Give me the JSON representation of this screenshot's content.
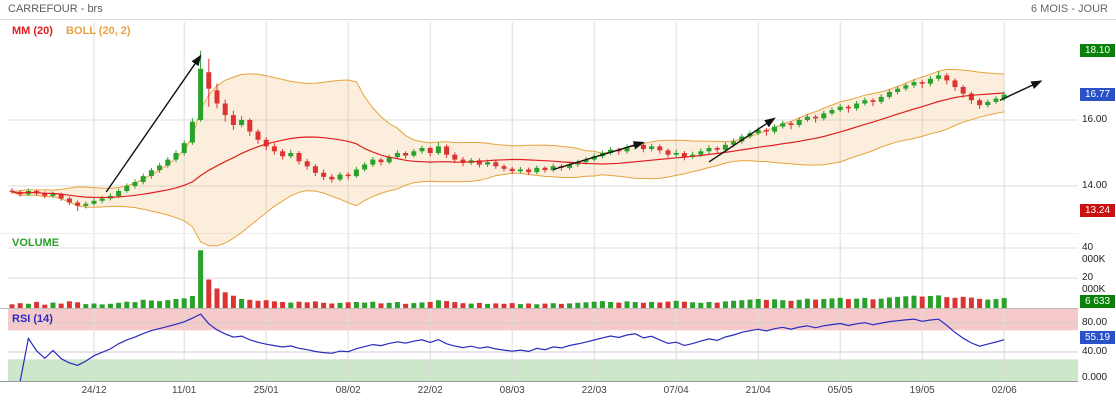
{
  "header": {
    "title": "CARREFOUR - brs",
    "timeframe": "6 MOIS - JOUR"
  },
  "legend": {
    "mm": "MM (20)",
    "boll": "BOLL (20, 2)"
  },
  "panels": {
    "volume_label": "VOLUME",
    "rsi_label": "RSI (14)"
  },
  "axis": {
    "price_high": "18.10",
    "price_last": "16.77",
    "price_grid_a": "16.00",
    "price_grid_b": "14.00",
    "price_low": "13.24",
    "vol_grid_a": "40 000K",
    "vol_grid_b": "20 000K",
    "vol_last": "6 633",
    "rsi_grid_a": "80.00",
    "rsi_last": "55.19",
    "rsi_grid_b": "40.00",
    "rsi_zero": "0.000"
  },
  "colors": {
    "up": "#2aa12a",
    "down": "#dd3333",
    "boll_line": "#e8a23e",
    "mm": "#e02020",
    "rsi": "#2a2ac0",
    "rsi_zone_high": "#f6caca",
    "rsi_zone_low": "#cde7cb",
    "grid": "#dddddd",
    "badge_green": "#0a820a",
    "badge_blue": "#2952c8",
    "badge_red": "#cc1111",
    "arrow": "#111111"
  },
  "chart_data": [
    {
      "type": "candlestick",
      "name": "CARREFOUR - brs daily candles",
      "timeframe": "6 MOIS - JOUR",
      "period_high": 18.1,
      "period_low": 13.24,
      "last_close": 16.77,
      "ylim": [
        13.0,
        18.6
      ],
      "grid_prices": [
        16,
        14
      ],
      "indicators": [
        {
          "name": "MM",
          "period": 20
        },
        {
          "name": "BOLL",
          "period": 20,
          "dev": 2
        }
      ],
      "x_ticks": [
        {
          "label": "24/12",
          "index": 10
        },
        {
          "label": "11/01",
          "index": 21
        },
        {
          "label": "25/01",
          "index": 31
        },
        {
          "label": "08/02",
          "index": 41
        },
        {
          "label": "22/02",
          "index": 51
        },
        {
          "label": "08/03",
          "index": 61
        },
        {
          "label": "22/03",
          "index": 71
        },
        {
          "label": "07/04",
          "index": 81
        },
        {
          "label": "21/04",
          "index": 91
        },
        {
          "label": "05/05",
          "index": 101
        },
        {
          "label": "19/05",
          "index": 111
        },
        {
          "label": "02/06",
          "index": 121
        }
      ],
      "arrows": [
        {
          "from": [
            11.5,
            13.82
          ],
          "to": [
            23,
            17.95
          ]
        },
        {
          "from": [
            66,
            14.5
          ],
          "to": [
            77,
            15.32
          ]
        },
        {
          "from": [
            85,
            14.73
          ],
          "to": [
            93,
            16.05
          ]
        },
        {
          "from": [
            120.5,
            16.6
          ],
          "to": [
            125.5,
            17.18
          ]
        }
      ],
      "columns": [
        "open",
        "high",
        "low",
        "close",
        "volume_k"
      ],
      "candles": [
        [
          13.86,
          13.94,
          13.76,
          13.82,
          2500
        ],
        [
          13.82,
          13.88,
          13.68,
          13.75,
          3200
        ],
        [
          13.75,
          13.92,
          13.7,
          13.85,
          2800
        ],
        [
          13.85,
          13.9,
          13.7,
          13.78,
          4100
        ],
        [
          13.78,
          13.84,
          13.62,
          13.7,
          2200
        ],
        [
          13.7,
          13.83,
          13.64,
          13.76,
          3600
        ],
        [
          13.76,
          13.8,
          13.55,
          13.62,
          2900
        ],
        [
          13.62,
          13.68,
          13.42,
          13.5,
          4500
        ],
        [
          13.5,
          13.56,
          13.24,
          13.4,
          3800
        ],
        [
          13.4,
          13.53,
          13.32,
          13.46,
          2600
        ],
        [
          13.46,
          13.62,
          13.4,
          13.55,
          3000
        ],
        [
          13.55,
          13.7,
          13.48,
          13.62,
          2400
        ],
        [
          13.62,
          13.78,
          13.56,
          13.7,
          2800
        ],
        [
          13.7,
          13.92,
          13.64,
          13.85,
          3500
        ],
        [
          13.85,
          14.08,
          13.8,
          14.0,
          4200
        ],
        [
          14.0,
          14.2,
          13.92,
          14.12,
          3900
        ],
        [
          14.12,
          14.38,
          14.05,
          14.3,
          5500
        ],
        [
          14.3,
          14.55,
          14.22,
          14.48,
          5000
        ],
        [
          14.48,
          14.7,
          14.4,
          14.62,
          4600
        ],
        [
          14.62,
          14.88,
          14.55,
          14.8,
          5200
        ],
        [
          14.8,
          15.08,
          14.72,
          15.0,
          6000
        ],
        [
          15.0,
          15.38,
          14.92,
          15.3,
          6500
        ],
        [
          15.32,
          16.05,
          15.25,
          15.95,
          8000
        ],
        [
          16.0,
          18.1,
          15.95,
          17.55,
          38500
        ],
        [
          17.45,
          17.85,
          16.4,
          16.95,
          19000
        ],
        [
          16.9,
          17.1,
          16.35,
          16.5,
          13000
        ],
        [
          16.5,
          16.62,
          15.95,
          16.15,
          10500
        ],
        [
          16.15,
          16.28,
          15.7,
          15.85,
          8200
        ],
        [
          15.85,
          16.12,
          15.78,
          16.0,
          6000
        ],
        [
          16.0,
          16.05,
          15.52,
          15.65,
          5500
        ],
        [
          15.65,
          15.72,
          15.28,
          15.4,
          4800
        ],
        [
          15.4,
          15.48,
          15.08,
          15.2,
          5200
        ],
        [
          15.2,
          15.3,
          14.95,
          15.05,
          4500
        ],
        [
          15.05,
          15.12,
          14.8,
          14.9,
          4000
        ],
        [
          14.9,
          15.1,
          14.84,
          15.0,
          3600
        ],
        [
          15.0,
          15.06,
          14.65,
          14.75,
          4200
        ],
        [
          14.75,
          14.82,
          14.5,
          14.6,
          3800
        ],
        [
          14.6,
          14.66,
          14.3,
          14.4,
          4400
        ],
        [
          14.4,
          14.5,
          14.18,
          14.28,
          3500
        ],
        [
          14.28,
          14.36,
          14.1,
          14.2,
          3000
        ],
        [
          14.2,
          14.42,
          14.14,
          14.35,
          3400
        ],
        [
          14.35,
          14.42,
          14.2,
          14.3,
          3800
        ],
        [
          14.3,
          14.58,
          14.25,
          14.5,
          4000
        ],
        [
          14.5,
          14.72,
          14.44,
          14.65,
          3600
        ],
        [
          14.65,
          14.88,
          14.58,
          14.8,
          4200
        ],
        [
          14.8,
          14.86,
          14.62,
          14.72,
          3100
        ],
        [
          14.72,
          14.95,
          14.66,
          14.88,
          3500
        ],
        [
          14.88,
          15.08,
          14.82,
          15.0,
          3900
        ],
        [
          15.0,
          15.05,
          14.82,
          14.92,
          2800
        ],
        [
          14.92,
          15.12,
          14.86,
          15.05,
          3300
        ],
        [
          15.05,
          15.22,
          14.98,
          15.15,
          3700
        ],
        [
          15.15,
          15.2,
          14.9,
          15.0,
          4100
        ],
        [
          15.0,
          15.32,
          14.94,
          15.2,
          5200
        ],
        [
          15.2,
          15.26,
          14.85,
          14.95,
          4600
        ],
        [
          14.95,
          15.02,
          14.7,
          14.8,
          3900
        ],
        [
          14.8,
          14.88,
          14.6,
          14.7,
          3200
        ],
        [
          14.7,
          14.85,
          14.64,
          14.78,
          2900
        ],
        [
          14.78,
          14.84,
          14.56,
          14.65,
          3400
        ],
        [
          14.65,
          14.8,
          14.58,
          14.72,
          2700
        ],
        [
          14.72,
          14.78,
          14.52,
          14.6,
          3100
        ],
        [
          14.6,
          14.66,
          14.44,
          14.52,
          2800
        ],
        [
          14.52,
          14.58,
          14.36,
          14.45,
          3300
        ],
        [
          14.45,
          14.58,
          14.38,
          14.5,
          2600
        ],
        [
          14.5,
          14.56,
          14.34,
          14.42,
          3000
        ],
        [
          14.42,
          14.62,
          14.36,
          14.55,
          2500
        ],
        [
          14.55,
          14.6,
          14.4,
          14.48,
          2900
        ],
        [
          14.48,
          14.68,
          14.42,
          14.6,
          3200
        ],
        [
          14.6,
          14.66,
          14.46,
          14.55,
          2700
        ],
        [
          14.55,
          14.72,
          14.48,
          14.65,
          3100
        ],
        [
          14.65,
          14.8,
          14.58,
          14.72,
          3500
        ],
        [
          14.72,
          14.88,
          14.65,
          14.8,
          3800
        ],
        [
          14.8,
          14.98,
          14.74,
          14.9,
          4200
        ],
        [
          14.9,
          15.08,
          14.84,
          15.0,
          4600
        ],
        [
          15.0,
          15.18,
          14.94,
          15.1,
          4000
        ],
        [
          15.1,
          15.16,
          14.95,
          15.05,
          3600
        ],
        [
          15.05,
          15.26,
          14.98,
          15.18,
          4400
        ],
        [
          15.18,
          15.33,
          15.1,
          15.25,
          3900
        ],
        [
          15.25,
          15.3,
          15.02,
          15.12,
          3500
        ],
        [
          15.12,
          15.28,
          15.05,
          15.2,
          4100
        ],
        [
          15.2,
          15.26,
          14.98,
          15.08,
          3700
        ],
        [
          15.08,
          15.14,
          14.86,
          14.95,
          4300
        ],
        [
          14.95,
          15.1,
          14.88,
          15.0,
          4800
        ],
        [
          15.0,
          15.06,
          14.78,
          14.88,
          4200
        ],
        [
          14.88,
          15.04,
          14.82,
          14.95,
          3800
        ],
        [
          14.95,
          15.14,
          14.88,
          15.05,
          3500
        ],
        [
          15.05,
          15.24,
          14.98,
          15.15,
          4000
        ],
        [
          15.15,
          15.2,
          14.98,
          15.1,
          3600
        ],
        [
          15.1,
          15.33,
          15.04,
          15.25,
          4400
        ],
        [
          15.25,
          15.44,
          15.18,
          15.35,
          4800
        ],
        [
          15.35,
          15.58,
          15.28,
          15.5,
          5200
        ],
        [
          15.5,
          15.68,
          15.44,
          15.6,
          5600
        ],
        [
          15.6,
          15.78,
          15.54,
          15.7,
          6000
        ],
        [
          15.7,
          15.76,
          15.52,
          15.65,
          5400
        ],
        [
          15.65,
          15.88,
          15.58,
          15.8,
          5800
        ],
        [
          15.8,
          15.98,
          15.74,
          15.9,
          5200
        ],
        [
          15.9,
          15.96,
          15.72,
          15.85,
          4800
        ],
        [
          15.85,
          16.08,
          15.78,
          16.0,
          5500
        ],
        [
          16.0,
          16.18,
          15.94,
          16.1,
          6200
        ],
        [
          16.1,
          16.16,
          15.92,
          16.05,
          5600
        ],
        [
          16.05,
          16.28,
          15.98,
          16.2,
          6000
        ],
        [
          16.2,
          16.38,
          16.14,
          16.3,
          6400
        ],
        [
          16.3,
          16.48,
          16.24,
          16.4,
          6800
        ],
        [
          16.4,
          16.46,
          16.22,
          16.35,
          5900
        ],
        [
          16.35,
          16.58,
          16.28,
          16.5,
          6300
        ],
        [
          16.5,
          16.68,
          16.44,
          16.6,
          6700
        ],
        [
          16.6,
          16.66,
          16.42,
          16.55,
          5800
        ],
        [
          16.55,
          16.78,
          16.48,
          16.7,
          6200
        ],
        [
          16.7,
          16.93,
          16.64,
          16.85,
          7000
        ],
        [
          16.85,
          17.03,
          16.78,
          16.95,
          7400
        ],
        [
          16.95,
          17.13,
          16.88,
          17.05,
          7800
        ],
        [
          17.05,
          17.24,
          16.98,
          17.15,
          8200
        ],
        [
          17.15,
          17.22,
          16.96,
          17.1,
          7600
        ],
        [
          17.1,
          17.33,
          17.02,
          17.25,
          8000
        ],
        [
          17.25,
          17.48,
          17.18,
          17.35,
          8400
        ],
        [
          17.35,
          17.42,
          17.08,
          17.2,
          7200
        ],
        [
          17.2,
          17.26,
          16.88,
          17.0,
          6800
        ],
        [
          17.0,
          17.06,
          16.68,
          16.8,
          7500
        ],
        [
          16.8,
          16.86,
          16.48,
          16.6,
          6900
        ],
        [
          16.6,
          16.66,
          16.34,
          16.45,
          6100
        ],
        [
          16.45,
          16.62,
          16.38,
          16.55,
          5600
        ],
        [
          16.55,
          16.72,
          16.48,
          16.65,
          5900
        ],
        [
          16.65,
          16.85,
          16.58,
          16.77,
          6633
        ]
      ]
    },
    {
      "type": "bar",
      "name": "VOLUME",
      "unit": "K",
      "grid_values": [
        40000,
        20000
      ],
      "last": 6633,
      "values_source": "chart_data.0.candles column volume_k"
    },
    {
      "type": "line",
      "name": "RSI (14)",
      "period": 14,
      "range": [
        0,
        100
      ],
      "grid_values": [
        80,
        40
      ],
      "overbought_zone": [
        70,
        100
      ],
      "oversold_zone": [
        0,
        30
      ],
      "last": 55.19
    }
  ]
}
